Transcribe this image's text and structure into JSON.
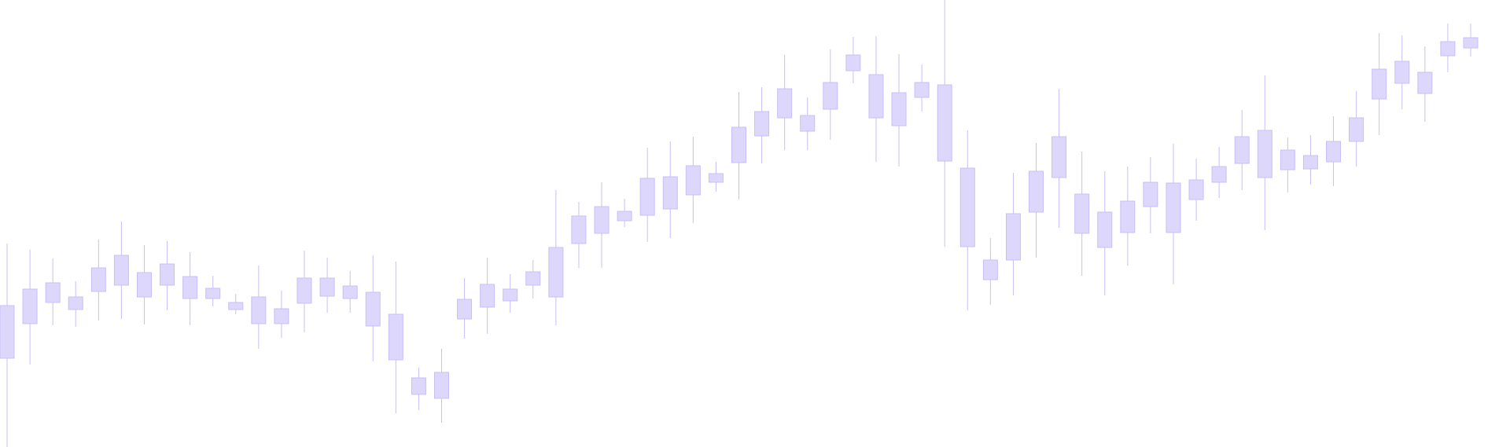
{
  "chart_data": {
    "type": "candlestick",
    "color": "#c9bff7",
    "body_color": "#ddd7fc",
    "ylim": [
      0,
      569
    ],
    "open": [
      113,
      157,
      184,
      175,
      198,
      206,
      191,
      206,
      189,
      189,
      175,
      157,
      157,
      183,
      192,
      189,
      154,
      111,
      67,
      62,
      163,
      178,
      186,
      206,
      191,
      259,
      272,
      288,
      295,
      303,
      321,
      337,
      362,
      396,
      419,
      402,
      430,
      479,
      419,
      409,
      445,
      364,
      255,
      213,
      238,
      299,
      343,
      272,
      254,
      273,
      306,
      273,
      315,
      337,
      361,
      343,
      353,
      354,
      363,
      389,
      443,
      463,
      450,
      498,
      508
    ],
    "high": [
      259,
      251,
      240,
      211,
      264,
      287,
      257,
      262,
      248,
      218,
      195,
      231,
      199,
      250,
      241,
      224,
      244,
      236,
      101,
      125,
      215,
      241,
      220,
      238,
      327,
      312,
      337,
      316,
      381,
      389,
      395,
      363,
      452,
      458,
      499,
      445,
      506,
      522,
      523,
      500,
      487,
      569,
      403,
      266,
      349,
      387,
      456,
      376,
      351,
      357,
      369,
      386,
      367,
      382,
      429,
      473,
      394,
      397,
      421,
      453,
      527,
      524,
      510,
      539,
      539
    ],
    "low": [
      0,
      105,
      155,
      153,
      161,
      163,
      156,
      174,
      155,
      179,
      169,
      125,
      139,
      146,
      171,
      171,
      109,
      43,
      47,
      31,
      138,
      144,
      171,
      189,
      155,
      228,
      228,
      280,
      261,
      266,
      285,
      325,
      315,
      361,
      378,
      378,
      391,
      463,
      363,
      357,
      427,
      255,
      174,
      181,
      193,
      241,
      279,
      218,
      193,
      231,
      272,
      207,
      288,
      317,
      327,
      276,
      324,
      334,
      332,
      357,
      397,
      430,
      414,
      477,
      497
    ],
    "close": [
      180,
      201,
      209,
      191,
      228,
      244,
      222,
      233,
      217,
      202,
      184,
      191,
      176,
      215,
      215,
      205,
      197,
      169,
      88,
      95,
      188,
      207,
      201,
      223,
      254,
      294,
      306,
      300,
      342,
      344,
      358,
      348,
      407,
      427,
      456,
      422,
      464,
      499,
      474,
      451,
      464,
      461,
      355,
      238,
      297,
      351,
      395,
      322,
      299,
      313,
      337,
      336,
      340,
      357,
      395,
      403,
      378,
      371,
      389,
      419,
      481,
      491,
      477,
      516,
      521
    ]
  }
}
